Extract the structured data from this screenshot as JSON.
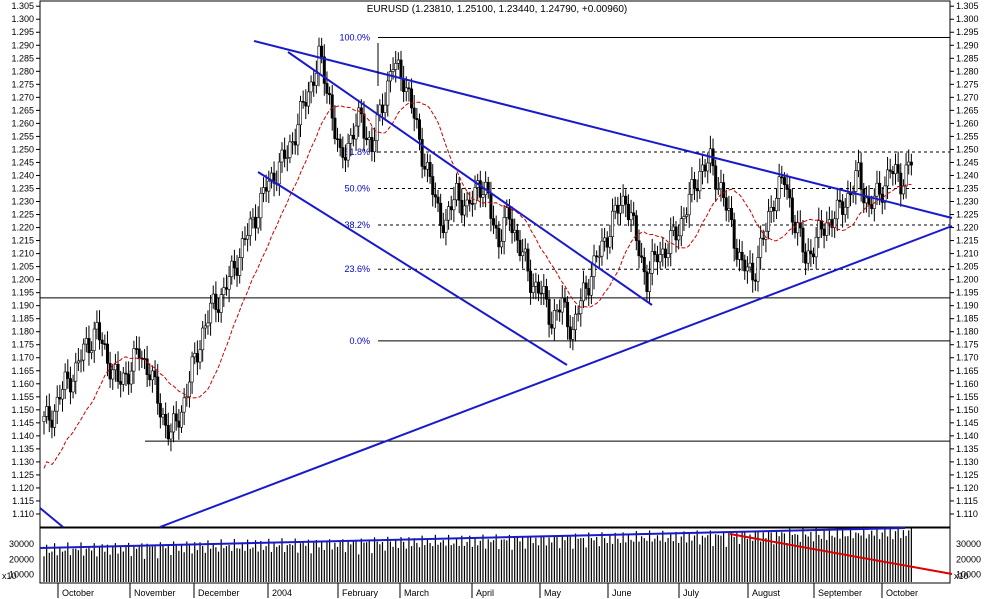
{
  "chart_data": {
    "type": "candlestick",
    "title": "EURUSD (1.23810, 1.25100, 1.23440, 1.24790, +0.00960)",
    "ylim": [
      1.105,
      1.307
    ],
    "y_ticks": [
      1.11,
      1.115,
      1.12,
      1.125,
      1.13,
      1.135,
      1.14,
      1.145,
      1.15,
      1.155,
      1.16,
      1.165,
      1.17,
      1.175,
      1.18,
      1.185,
      1.19,
      1.195,
      1.2,
      1.205,
      1.21,
      1.215,
      1.22,
      1.225,
      1.23,
      1.235,
      1.24,
      1.245,
      1.25,
      1.255,
      1.26,
      1.265,
      1.27,
      1.275,
      1.28,
      1.285,
      1.29,
      1.295,
      1.3,
      1.305
    ],
    "x_labels": [
      "October",
      "November",
      "December",
      "2004",
      "February",
      "March",
      "April",
      "May",
      "June",
      "July",
      "August",
      "September",
      "October"
    ],
    "fibonacci": [
      {
        "label": "100.0%",
        "value": 1.293
      },
      {
        "label": "61.8%",
        "value": 1.249
      },
      {
        "label": "50.0%",
        "value": 1.235
      },
      {
        "label": "38.2%",
        "value": 1.221
      },
      {
        "label": "23.6%",
        "value": 1.204
      },
      {
        "label": "0.0%",
        "value": 1.1765
      }
    ],
    "horizontal_levels": [
      1.193,
      1.138
    ],
    "price_anchors": [
      [
        0,
        1.145
      ],
      [
        4,
        1.15
      ],
      [
        8,
        1.16
      ],
      [
        12,
        1.165
      ],
      [
        16,
        1.175
      ],
      [
        20,
        1.18
      ],
      [
        24,
        1.17
      ],
      [
        28,
        1.16
      ],
      [
        32,
        1.165
      ],
      [
        36,
        1.172
      ],
      [
        40,
        1.165
      ],
      [
        44,
        1.15
      ],
      [
        48,
        1.14
      ],
      [
        52,
        1.15
      ],
      [
        56,
        1.165
      ],
      [
        60,
        1.18
      ],
      [
        64,
        1.19
      ],
      [
        68,
        1.195
      ],
      [
        72,
        1.205
      ],
      [
        76,
        1.215
      ],
      [
        80,
        1.225
      ],
      [
        84,
        1.235
      ],
      [
        88,
        1.242
      ],
      [
        92,
        1.248
      ],
      [
        96,
        1.26
      ],
      [
        100,
        1.272
      ],
      [
        104,
        1.285
      ],
      [
        108,
        1.27
      ],
      [
        112,
        1.245
      ],
      [
        116,
        1.255
      ],
      [
        120,
        1.262
      ],
      [
        124,
        1.25
      ],
      [
        128,
        1.268
      ],
      [
        132,
        1.282
      ],
      [
        136,
        1.278
      ],
      [
        140,
        1.262
      ],
      [
        144,
        1.245
      ],
      [
        148,
        1.23
      ],
      [
        152,
        1.22
      ],
      [
        156,
        1.235
      ],
      [
        160,
        1.225
      ],
      [
        164,
        1.238
      ],
      [
        168,
        1.23
      ],
      [
        172,
        1.215
      ],
      [
        176,
        1.225
      ],
      [
        180,
        1.212
      ],
      [
        184,
        1.2
      ],
      [
        188,
        1.195
      ],
      [
        192,
        1.185
      ],
      [
        196,
        1.19
      ],
      [
        200,
        1.18
      ],
      [
        204,
        1.195
      ],
      [
        208,
        1.205
      ],
      [
        212,
        1.215
      ],
      [
        216,
        1.225
      ],
      [
        220,
        1.232
      ],
      [
        224,
        1.215
      ],
      [
        228,
        1.2
      ],
      [
        232,
        1.21
      ],
      [
        236,
        1.212
      ],
      [
        240,
        1.22
      ],
      [
        244,
        1.23
      ],
      [
        248,
        1.242
      ],
      [
        252,
        1.245
      ],
      [
        256,
        1.235
      ],
      [
        260,
        1.22
      ],
      [
        264,
        1.205
      ],
      [
        268,
        1.202
      ],
      [
        272,
        1.215
      ],
      [
        276,
        1.232
      ],
      [
        280,
        1.238
      ],
      [
        284,
        1.222
      ],
      [
        288,
        1.208
      ],
      [
        292,
        1.215
      ],
      [
        296,
        1.222
      ],
      [
        300,
        1.225
      ],
      [
        304,
        1.232
      ],
      [
        308,
        1.24
      ],
      [
        312,
        1.228
      ],
      [
        316,
        1.233
      ],
      [
        320,
        1.242
      ],
      [
        324,
        1.238
      ],
      [
        328,
        1.245
      ]
    ],
    "volume_ylim": [
      5000,
      40000
    ],
    "volume_ticks": [
      10000,
      20000,
      30000
    ],
    "volume_multiplier_label": "x10"
  }
}
